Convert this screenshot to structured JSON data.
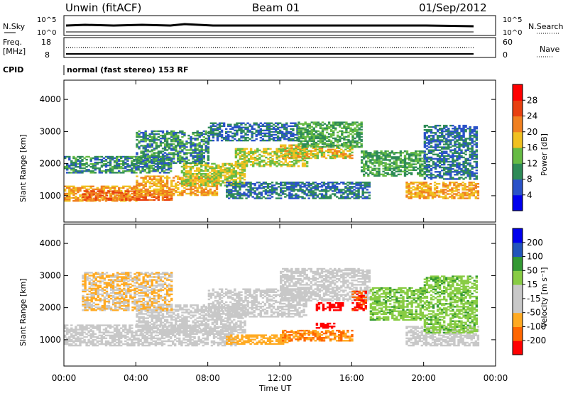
{
  "header": {
    "station": "Unwin (fitACF)",
    "beam": "Beam 01",
    "date": "01/Sep/2012"
  },
  "params": {
    "nsky_label": "N.Sky",
    "nsky_ticks": [
      "10^5",
      "10^0"
    ],
    "nsearch_label": "N.Search",
    "nsearch_ticks": [
      "10^5",
      "10^0"
    ],
    "freq_label_1": "Freq.",
    "freq_label_2": "[MHz]",
    "freq_ticks": [
      "18",
      "8"
    ],
    "nave_label": "Nave",
    "nave_ticks": [
      "60",
      "0"
    ],
    "cpid_label": "CPID",
    "cpid_text": "normal (fast stereo) 153 RF"
  },
  "colors": {
    "power": [
      "#0000ee",
      "#2a52c8",
      "#2e8b57",
      "#66bb44",
      "#f0c020",
      "#f08020",
      "#e84010",
      "#ff0000"
    ],
    "velocity": [
      "#ff0000",
      "#ff6600",
      "#ffaa22",
      "#c8c8c8",
      "#c8c8c8",
      "#88cc44",
      "#339933",
      "#2255bb",
      "#0000ee"
    ],
    "axis": "#000000"
  },
  "chart_data": [
    {
      "type": "heatmap",
      "title": "",
      "xlabel": "Time UT",
      "ylabel": "Slant Range [km]",
      "x_ticks": [
        "00:00",
        "04:00",
        "08:00",
        "12:00",
        "16:00",
        "20:00",
        "00:00"
      ],
      "xlim_hours": [
        0,
        24
      ],
      "y_ticks": [
        "1000",
        "2000",
        "3000",
        "4000"
      ],
      "ylim_km": [
        180,
        4600
      ],
      "colorbar": {
        "label": "Power [dB]",
        "ticks": [
          "4",
          "8",
          "12",
          "16",
          "20",
          "24",
          "28"
        ],
        "range": [
          0,
          32
        ]
      },
      "bands": [
        {
          "t": [
            0.0,
            4.0
          ],
          "r": [
            820,
            1300
          ],
          "value": 20
        },
        {
          "t": [
            1.0,
            6.0
          ],
          "r": [
            850,
            1150
          ],
          "value": 24
        },
        {
          "t": [
            4.0,
            8.5
          ],
          "r": [
            1000,
            1600
          ],
          "value": 20
        },
        {
          "t": [
            6.5,
            10.0
          ],
          "r": [
            1300,
            2000
          ],
          "value": 16
        },
        {
          "t": [
            9.5,
            13.5
          ],
          "r": [
            1900,
            2450
          ],
          "value": 16
        },
        {
          "t": [
            12.0,
            16.0
          ],
          "r": [
            2150,
            2600
          ],
          "value": 18
        },
        {
          "t": [
            0.0,
            6.0
          ],
          "r": [
            1700,
            2200
          ],
          "value": 10
        },
        {
          "t": [
            4.0,
            8.0
          ],
          "r": [
            2000,
            3000
          ],
          "value": 10
        },
        {
          "t": [
            8.0,
            13.0
          ],
          "r": [
            2700,
            3250
          ],
          "value": 8
        },
        {
          "t": [
            13.0,
            16.5
          ],
          "r": [
            2500,
            3300
          ],
          "value": 12
        },
        {
          "t": [
            9.0,
            17.0
          ],
          "r": [
            900,
            1400
          ],
          "value": 8
        },
        {
          "t": [
            16.5,
            20.0
          ],
          "r": [
            1600,
            2400
          ],
          "value": 12
        },
        {
          "t": [
            19.0,
            23.0
          ],
          "r": [
            900,
            1400
          ],
          "value": 20
        },
        {
          "t": [
            20.0,
            23.0
          ],
          "r": [
            1500,
            3200
          ],
          "value": 8
        }
      ]
    },
    {
      "type": "heatmap",
      "title": "",
      "xlabel": "Time UT",
      "ylabel": "Slant Range [km]",
      "x_ticks": [
        "00:00",
        "04:00",
        "08:00",
        "12:00",
        "16:00",
        "20:00",
        "00:00"
      ],
      "xlim_hours": [
        0,
        24
      ],
      "y_ticks": [
        "1000",
        "2000",
        "3000",
        "4000"
      ],
      "ylim_km": [
        180,
        4600
      ],
      "colorbar": {
        "label": "Velocity [m s⁻¹]",
        "ticks": [
          "200",
          "100",
          "50",
          "15",
          "-15",
          "-50",
          "-100",
          "-200"
        ],
        "range": [
          -250,
          250
        ]
      },
      "bands": [
        {
          "t": [
            0.0,
            9.5
          ],
          "r": [
            800,
            1450
          ],
          "value": 0
        },
        {
          "t": [
            4.0,
            10.0
          ],
          "r": [
            1200,
            2100
          ],
          "value": 0
        },
        {
          "t": [
            8.0,
            13.5
          ],
          "r": [
            1700,
            2600
          ],
          "value": 0
        },
        {
          "t": [
            12.0,
            17.0
          ],
          "r": [
            2200,
            3200
          ],
          "value": 0
        },
        {
          "t": [
            19.0,
            23.0
          ],
          "r": [
            800,
            1400
          ],
          "value": 0
        },
        {
          "t": [
            1.0,
            6.0
          ],
          "r": [
            1900,
            3100
          ],
          "value": -50
        },
        {
          "t": [
            9.0,
            12.5
          ],
          "r": [
            850,
            1150
          ],
          "value": -80
        },
        {
          "t": [
            12.0,
            16.0
          ],
          "r": [
            950,
            1300
          ],
          "value": -100
        },
        {
          "t": [
            14.0,
            15.5
          ],
          "r": [
            1900,
            2150
          ],
          "value": -220
        },
        {
          "t": [
            14.0,
            15.0
          ],
          "r": [
            1350,
            1500
          ],
          "value": -220
        },
        {
          "t": [
            16.0,
            16.8
          ],
          "r": [
            1900,
            2500
          ],
          "value": -200
        },
        {
          "t": [
            17.0,
            20.0
          ],
          "r": [
            1600,
            2600
          ],
          "value": 40
        },
        {
          "t": [
            20.0,
            23.0
          ],
          "r": [
            1200,
            3000
          ],
          "value": 40
        }
      ]
    }
  ]
}
